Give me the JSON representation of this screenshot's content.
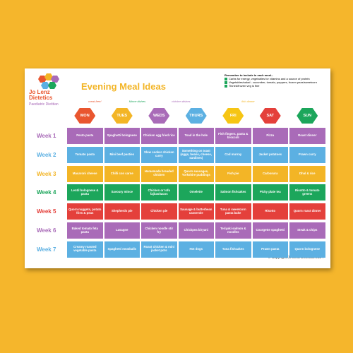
{
  "logo": {
    "name": "Jo Lenz Dietetics",
    "tagline": "Paediatric Dietitian"
  },
  "title": "Evening Meal Ideas",
  "reminder": {
    "heading": "Remember to include in each meal...",
    "items": [
      "Carbs for energy, vegetables for vitamins and a source of protein",
      "Vegetables/salad - cucumber, tomato, peppers, frozen peas/sweetcorn",
      "Tinned/frozen veg is fine"
    ]
  },
  "days": [
    {
      "label": "MON",
      "color": "#e9562f"
    },
    {
      "label": "TUES",
      "color": "#f3b526"
    },
    {
      "label": "WEDS",
      "color": "#a96bb8"
    },
    {
      "label": "THURS",
      "color": "#5cb0e2"
    },
    {
      "label": "FRI",
      "color": "#f6c514"
    },
    {
      "label": "SAT",
      "color": "#e4403b"
    },
    {
      "label": "SUN",
      "color": "#1ca65b"
    }
  ],
  "notes": [
    {
      "text": "meat-free!",
      "color": "#e9562f"
    },
    {
      "text": "Mince dishes",
      "color": "#1ca65b"
    },
    {
      "text": "chicken dishes",
      "color": "#a96bb8"
    },
    {
      "text": "fish dinner",
      "color": "#f3b526"
    }
  ],
  "weeks": [
    {
      "label": "Week 1",
      "color": "#a96bb8",
      "meals": [
        "Pesto pasta",
        "Spaghetti bolognese",
        "Chicken egg fried rice",
        "Toad in the hole",
        "Fish fingers, pasta & broccoli",
        "Pizza",
        "Roast dinner"
      ]
    },
    {
      "label": "Week 2",
      "color": "#5cb0e2",
      "meals": [
        "Tomato pasta",
        "Mini beef pasties",
        "Slow cooker chicken curry",
        "Something on toast (eggs, beans, cheese, sardines)",
        "Cod murray",
        "Jacket potatoes",
        "Prawn curry"
      ]
    },
    {
      "label": "Week 3",
      "color": "#f3b526",
      "meals": [
        "Macaroni cheese",
        "Chilli con carne",
        "Homemade breaded chicken",
        "Quorn sausages, Yorkshire puddings",
        "Fish pie",
        "Carbonara",
        "Dhal & rice"
      ]
    },
    {
      "label": "Week 4",
      "color": "#1ca65b",
      "meals": [
        "Lentil bolognese & pasta",
        "Savoury mince",
        "Chicken or tofu fajitas/tacos",
        "Omelette",
        "Salmon fishcakes",
        "Picky plate tea",
        "Risotto & tomato greens"
      ]
    },
    {
      "label": "Week 5",
      "color": "#e4403b",
      "meals": [
        "Quorn nuggets, potato fries & peas",
        "Shepherds pie",
        "Chicken pie",
        "Sausage & butterbean casserole",
        "Tuna & sweetcorn pasta bake",
        "Risotto",
        "Quorn roast dinner"
      ]
    },
    {
      "label": "Week 6",
      "color": "#a96bb8",
      "meals": [
        "Baked tomato feta pasta",
        "Lasagne",
        "Chicken noodle stir fry",
        "Chickpea biryani",
        "Teriyaki salmon & noodles",
        "Courgette spaghetti",
        "Steak & chips"
      ]
    },
    {
      "label": "Week 7",
      "color": "#5cb0e2",
      "meals": [
        "Creamy roasted vegetable pasta",
        "Spaghetti meatballs",
        "Roast chicken & mini jacket pots",
        "Hot dogs",
        "Tuna fishcakes",
        "Prawn pasta",
        "Quorn bolognese"
      ]
    }
  ],
  "footer": "© Copyright Jo Lenz Dietetics 2024"
}
